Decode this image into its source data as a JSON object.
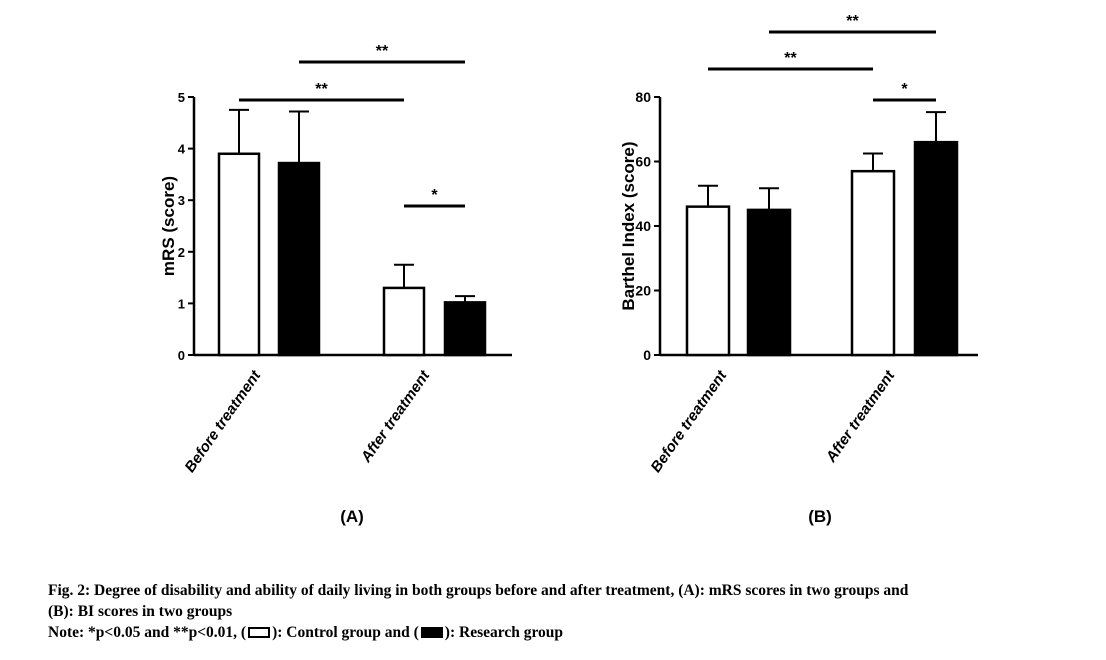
{
  "chart_data": [
    {
      "panel_label": "(A)",
      "type": "bar",
      "ylabel": "mRS (score)",
      "ylim": [
        0,
        5
      ],
      "yticks": [
        0,
        1,
        2,
        3,
        4,
        5
      ],
      "categories": [
        "Before treatment",
        "After treatment"
      ],
      "series": [
        {
          "values": [
            3.9,
            1.3
          ],
          "errors": [
            0.85,
            0.45
          ],
          "style": "open"
        },
        {
          "values": [
            3.72,
            1.02
          ],
          "errors": [
            1.0,
            0.12
          ],
          "style": "filled"
        }
      ],
      "significance": [
        {
          "label": "**",
          "from": "Before treatment / control",
          "to": "After treatment / control"
        },
        {
          "label": "**",
          "from": "Before treatment / research",
          "to": "After treatment / research"
        },
        {
          "label": "*",
          "from": "After treatment / control",
          "to": "After treatment / research"
        }
      ]
    },
    {
      "panel_label": "(B)",
      "type": "bar",
      "ylabel": "Barthel Index (score)",
      "ylim": [
        0,
        80
      ],
      "yticks": [
        0,
        20,
        40,
        60,
        80
      ],
      "categories": [
        "Before treatment",
        "After treatment"
      ],
      "series": [
        {
          "values": [
            46,
            57
          ],
          "errors": [
            6.5,
            5.5
          ],
          "style": "open"
        },
        {
          "values": [
            45,
            66
          ],
          "errors": [
            6.7,
            9.3
          ],
          "style": "filled"
        }
      ],
      "significance": [
        {
          "label": "**",
          "from": "Before treatment / control",
          "to": "After treatment / control"
        },
        {
          "label": "**",
          "from": "Before treatment / research",
          "to": "After treatment / research"
        },
        {
          "label": "*",
          "from": "After treatment / control",
          "to": "After treatment / research"
        }
      ]
    }
  ],
  "caption": {
    "line1": "Fig. 2: Degree of disability and ability of daily living in both groups before and after treatment, (A): mRS scores in two groups and",
    "line2": "(B): BI scores in two groups",
    "note_start": "Note: *p<0.05 and **p<0.01, (",
    "note_mid": "): Control group and (",
    "note_end": "): Research group"
  },
  "colors": {
    "bar_filled": "#000000",
    "bar_open": "#ffffff",
    "stroke": "#000000"
  }
}
